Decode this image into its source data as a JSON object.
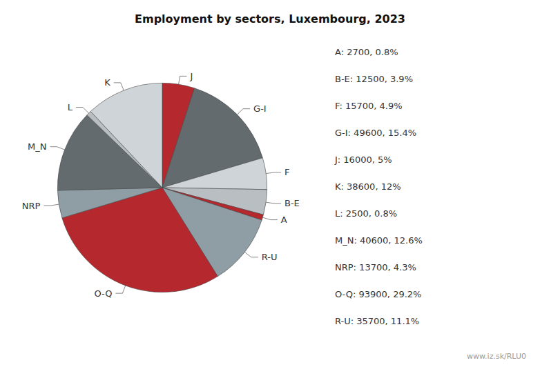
{
  "chart_data": {
    "type": "pie",
    "title": "Employment by sectors, Luxembourg, 2023",
    "subtitle": "www.iz.sk/RLU0",
    "categories": [
      "J",
      "G-I",
      "F",
      "B-E",
      "A",
      "R-U",
      "O-Q",
      "NRP",
      "M_N",
      "L",
      "K"
    ],
    "values": [
      16000,
      49600,
      15700,
      12500,
      2700,
      35700,
      93900,
      13700,
      40600,
      2500,
      38600
    ],
    "colors": [
      "#b5282e",
      "#636b6f",
      "#ced4d8",
      "#b8bec2",
      "#b5282e",
      "#8e9ea4",
      "#b5282e",
      "#8e9ea4",
      "#636b6f",
      "#b8bec2",
      "#ced4d8"
    ],
    "annotations": [
      "A: 2700, 0.8%",
      "B-E: 12500, 3.9%",
      "F: 15700, 4.9%",
      "G-I: 49600, 15.4%",
      "J: 16000, 5%",
      "K: 38600, 12%",
      "L: 2500, 0.8%",
      "M_N: 40600, 12.6%",
      "NRP: 13700, 4.3%",
      "O-Q: 93900, 29.2%",
      "R-U: 35700, 11.1%"
    ],
    "data_labels": false
  }
}
